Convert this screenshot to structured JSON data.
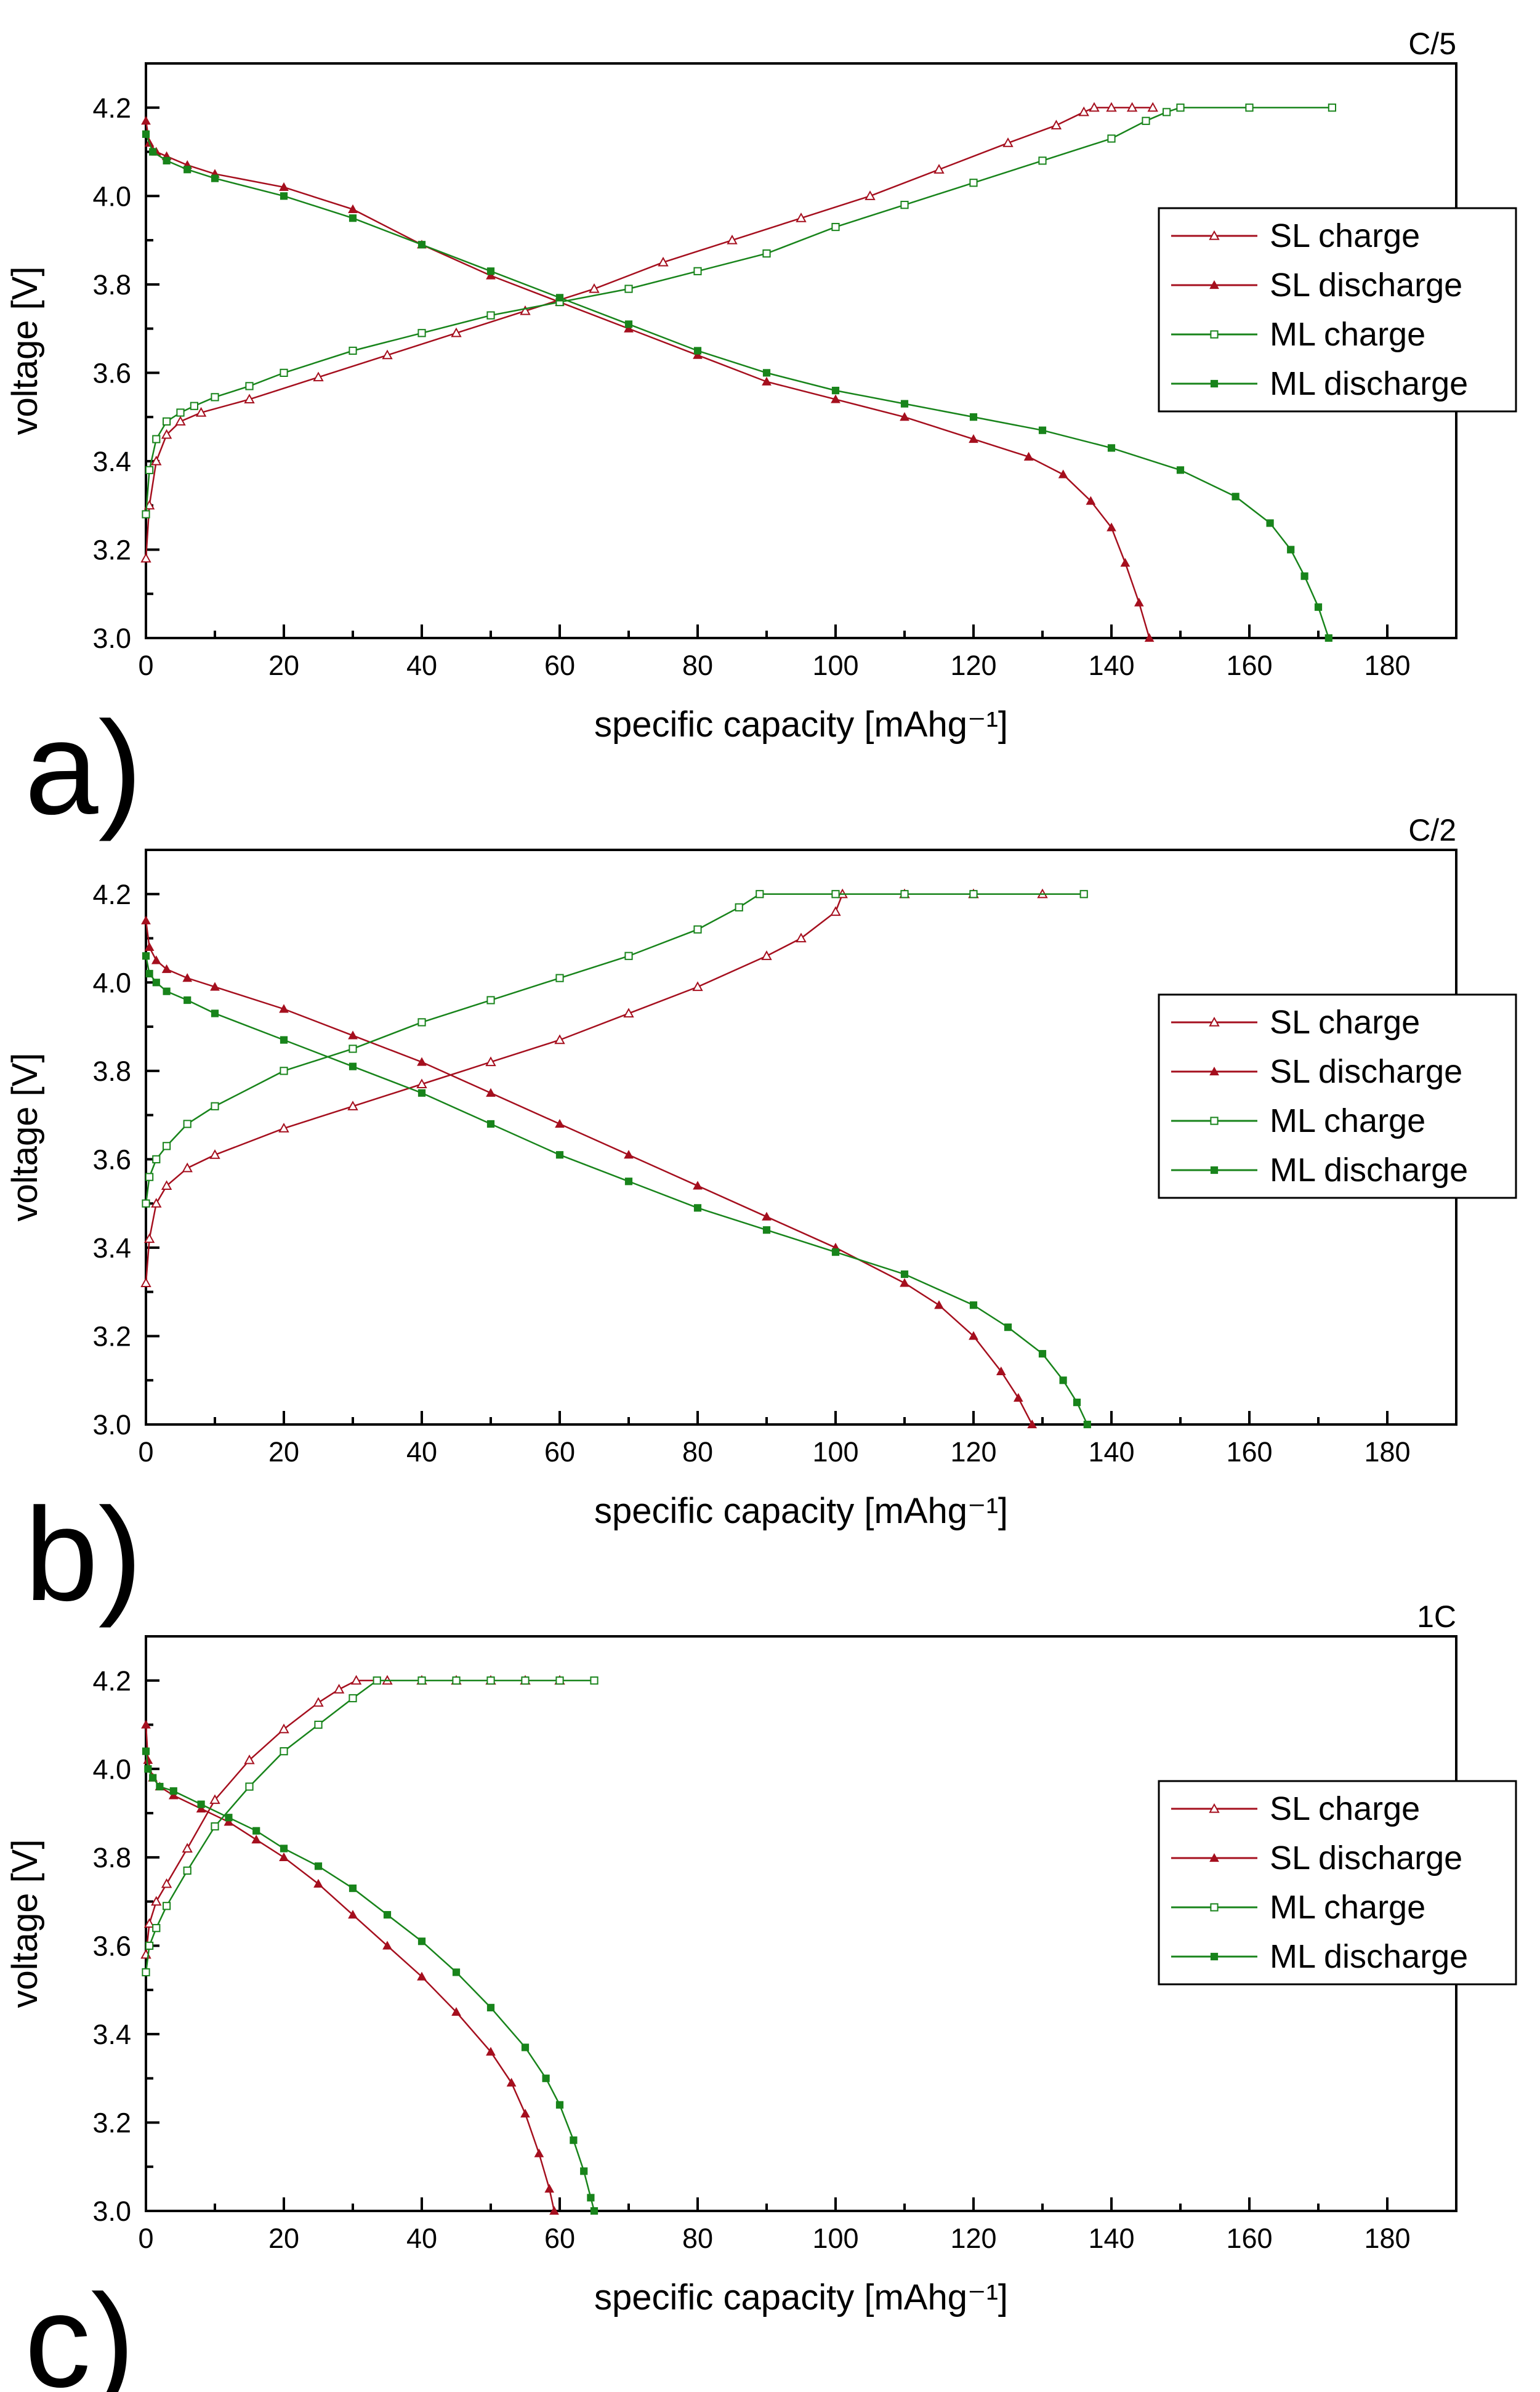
{
  "colors": {
    "axis": "#000000",
    "background": "#ffffff",
    "sl": "#a50f1e",
    "ml": "#18841b"
  },
  "chart_data": [
    {
      "type": "line",
      "panel_label": "a)",
      "title": "C/5",
      "xlabel": "specific capacity [mAhg⁻¹]",
      "ylabel": "voltage [V]",
      "xlim": [
        0,
        190
      ],
      "ylim": [
        3.0,
        4.3
      ],
      "xticks": [
        0,
        20,
        40,
        60,
        80,
        100,
        120,
        140,
        160,
        180
      ],
      "yticks": [
        3.0,
        3.2,
        3.4,
        3.6,
        3.8,
        4.0,
        4.2
      ],
      "grid": false,
      "legend": {
        "position": "right"
      },
      "series": [
        {
          "name": "SL charge",
          "color": "#a50f1e",
          "marker": "triangle-open",
          "x": [
            0,
            0.5,
            1.5,
            3,
            5,
            8,
            15,
            25,
            35,
            45,
            55,
            65,
            75,
            85,
            95,
            105,
            115,
            125,
            132,
            136,
            137.5,
            140,
            143,
            146
          ],
          "y": [
            3.18,
            3.3,
            3.4,
            3.46,
            3.49,
            3.51,
            3.54,
            3.59,
            3.64,
            3.69,
            3.74,
            3.79,
            3.85,
            3.9,
            3.95,
            4.0,
            4.06,
            4.12,
            4.16,
            4.19,
            4.2,
            4.2,
            4.2,
            4.2
          ]
        },
        {
          "name": "SL discharge",
          "color": "#a50f1e",
          "marker": "triangle-filled",
          "x": [
            0,
            0.5,
            1.5,
            3,
            6,
            10,
            20,
            30,
            40,
            50,
            60,
            70,
            80,
            90,
            100,
            110,
            120,
            128,
            133,
            137,
            140,
            142,
            144,
            145.5
          ],
          "y": [
            4.17,
            4.12,
            4.1,
            4.09,
            4.07,
            4.05,
            4.02,
            3.97,
            3.89,
            3.82,
            3.76,
            3.7,
            3.64,
            3.58,
            3.54,
            3.5,
            3.45,
            3.41,
            3.37,
            3.31,
            3.25,
            3.17,
            3.08,
            3.0
          ]
        },
        {
          "name": "ML charge",
          "color": "#18841b",
          "marker": "square-open",
          "x": [
            0,
            0.5,
            1.5,
            3,
            5,
            7,
            10,
            15,
            20,
            30,
            40,
            50,
            60,
            70,
            80,
            90,
            100,
            110,
            120,
            130,
            140,
            145,
            148,
            150,
            160,
            172
          ],
          "y": [
            3.28,
            3.38,
            3.45,
            3.49,
            3.51,
            3.525,
            3.545,
            3.57,
            3.6,
            3.65,
            3.69,
            3.73,
            3.76,
            3.79,
            3.83,
            3.87,
            3.93,
            3.98,
            4.03,
            4.08,
            4.13,
            4.17,
            4.19,
            4.2,
            4.2,
            4.2
          ]
        },
        {
          "name": "ML discharge",
          "color": "#18841b",
          "marker": "square-filled",
          "x": [
            0,
            1,
            3,
            6,
            10,
            20,
            30,
            40,
            50,
            60,
            70,
            80,
            90,
            100,
            110,
            120,
            130,
            140,
            150,
            158,
            163,
            166,
            168,
            170,
            171.5
          ],
          "y": [
            4.14,
            4.1,
            4.08,
            4.06,
            4.04,
            4.0,
            3.95,
            3.89,
            3.83,
            3.77,
            3.71,
            3.65,
            3.6,
            3.56,
            3.53,
            3.5,
            3.47,
            3.43,
            3.38,
            3.32,
            3.26,
            3.2,
            3.14,
            3.07,
            3.0
          ]
        }
      ]
    },
    {
      "type": "line",
      "panel_label": "b)",
      "title": "C/2",
      "xlabel": "specific capacity [mAhg⁻¹]",
      "ylabel": "voltage [V]",
      "xlim": [
        0,
        190
      ],
      "ylim": [
        3.0,
        4.3
      ],
      "xticks": [
        0,
        20,
        40,
        60,
        80,
        100,
        120,
        140,
        160,
        180
      ],
      "yticks": [
        3.0,
        3.2,
        3.4,
        3.6,
        3.8,
        4.0,
        4.2
      ],
      "grid": false,
      "legend": {
        "position": "right"
      },
      "series": [
        {
          "name": "SL charge",
          "color": "#a50f1e",
          "marker": "triangle-open",
          "x": [
            0,
            0.5,
            1.5,
            3,
            6,
            10,
            20,
            30,
            40,
            50,
            60,
            70,
            80,
            90,
            95,
            100,
            101,
            110,
            120,
            130
          ],
          "y": [
            3.32,
            3.42,
            3.5,
            3.54,
            3.58,
            3.61,
            3.67,
            3.72,
            3.77,
            3.82,
            3.87,
            3.93,
            3.99,
            4.06,
            4.1,
            4.16,
            4.2,
            4.2,
            4.2,
            4.2
          ]
        },
        {
          "name": "SL discharge",
          "color": "#a50f1e",
          "marker": "triangle-filled",
          "x": [
            0,
            0.5,
            1.5,
            3,
            6,
            10,
            20,
            30,
            40,
            50,
            60,
            70,
            80,
            90,
            100,
            110,
            115,
            120,
            124,
            126.5,
            128.5
          ],
          "y": [
            4.14,
            4.08,
            4.05,
            4.03,
            4.01,
            3.99,
            3.94,
            3.88,
            3.82,
            3.75,
            3.68,
            3.61,
            3.54,
            3.47,
            3.4,
            3.32,
            3.27,
            3.2,
            3.12,
            3.06,
            3.0
          ]
        },
        {
          "name": "ML charge",
          "color": "#18841b",
          "marker": "square-open",
          "x": [
            0,
            0.5,
            1.5,
            3,
            6,
            10,
            20,
            30,
            40,
            50,
            60,
            70,
            80,
            86,
            89,
            100,
            110,
            120,
            136
          ],
          "y": [
            3.5,
            3.56,
            3.6,
            3.63,
            3.68,
            3.72,
            3.8,
            3.85,
            3.91,
            3.96,
            4.01,
            4.06,
            4.12,
            4.17,
            4.2,
            4.2,
            4.2,
            4.2,
            4.2
          ]
        },
        {
          "name": "ML discharge",
          "color": "#18841b",
          "marker": "square-filled",
          "x": [
            0,
            0.5,
            1.5,
            3,
            6,
            10,
            20,
            30,
            40,
            50,
            60,
            70,
            80,
            90,
            100,
            110,
            120,
            125,
            130,
            133,
            135,
            136.5
          ],
          "y": [
            4.06,
            4.02,
            4.0,
            3.98,
            3.96,
            3.93,
            3.87,
            3.81,
            3.75,
            3.68,
            3.61,
            3.55,
            3.49,
            3.44,
            3.39,
            3.34,
            3.27,
            3.22,
            3.16,
            3.1,
            3.05,
            3.0
          ]
        }
      ]
    },
    {
      "type": "line",
      "panel_label": "c)",
      "title": "1C",
      "xlabel": "specific capacity [mAhg⁻¹]",
      "ylabel": "voltage [V]",
      "xlim": [
        0,
        190
      ],
      "ylim": [
        3.0,
        4.3
      ],
      "xticks": [
        0,
        20,
        40,
        60,
        80,
        100,
        120,
        140,
        160,
        180
      ],
      "yticks": [
        3.0,
        3.2,
        3.4,
        3.6,
        3.8,
        4.0,
        4.2
      ],
      "grid": false,
      "legend": {
        "position": "right"
      },
      "series": [
        {
          "name": "SL charge",
          "color": "#a50f1e",
          "marker": "triangle-open",
          "x": [
            0,
            0.5,
            1.5,
            3,
            6,
            10,
            15,
            20,
            25,
            28,
            30.5,
            35,
            40,
            45,
            50,
            55,
            60
          ],
          "y": [
            3.58,
            3.65,
            3.7,
            3.74,
            3.82,
            3.93,
            4.02,
            4.09,
            4.15,
            4.18,
            4.2,
            4.2,
            4.2,
            4.2,
            4.2,
            4.2,
            4.2
          ]
        },
        {
          "name": "SL discharge",
          "color": "#a50f1e",
          "marker": "triangle-filled",
          "x": [
            0,
            0.3,
            1,
            2,
            4,
            8,
            12,
            16,
            20,
            25,
            30,
            35,
            40,
            45,
            50,
            53,
            55,
            57,
            58.5,
            59.2
          ],
          "y": [
            4.1,
            4.02,
            3.98,
            3.96,
            3.94,
            3.91,
            3.88,
            3.84,
            3.8,
            3.74,
            3.67,
            3.6,
            3.53,
            3.45,
            3.36,
            3.29,
            3.22,
            3.13,
            3.05,
            3.0
          ]
        },
        {
          "name": "ML charge",
          "color": "#18841b",
          "marker": "square-open",
          "x": [
            0,
            0.5,
            1.5,
            3,
            6,
            10,
            15,
            20,
            25,
            30,
            33.5,
            40,
            45,
            50,
            55,
            60,
            65
          ],
          "y": [
            3.54,
            3.6,
            3.64,
            3.69,
            3.77,
            3.87,
            3.96,
            4.04,
            4.1,
            4.16,
            4.2,
            4.2,
            4.2,
            4.2,
            4.2,
            4.2,
            4.2
          ]
        },
        {
          "name": "ML discharge",
          "color": "#18841b",
          "marker": "square-filled",
          "x": [
            0,
            0.3,
            1,
            2,
            4,
            8,
            12,
            16,
            20,
            25,
            30,
            35,
            40,
            45,
            50,
            55,
            58,
            60,
            62,
            63.5,
            64.5,
            65
          ],
          "y": [
            4.04,
            4.0,
            3.98,
            3.96,
            3.95,
            3.92,
            3.89,
            3.86,
            3.82,
            3.78,
            3.73,
            3.67,
            3.61,
            3.54,
            3.46,
            3.37,
            3.3,
            3.24,
            3.16,
            3.09,
            3.03,
            3.0
          ]
        }
      ]
    }
  ]
}
